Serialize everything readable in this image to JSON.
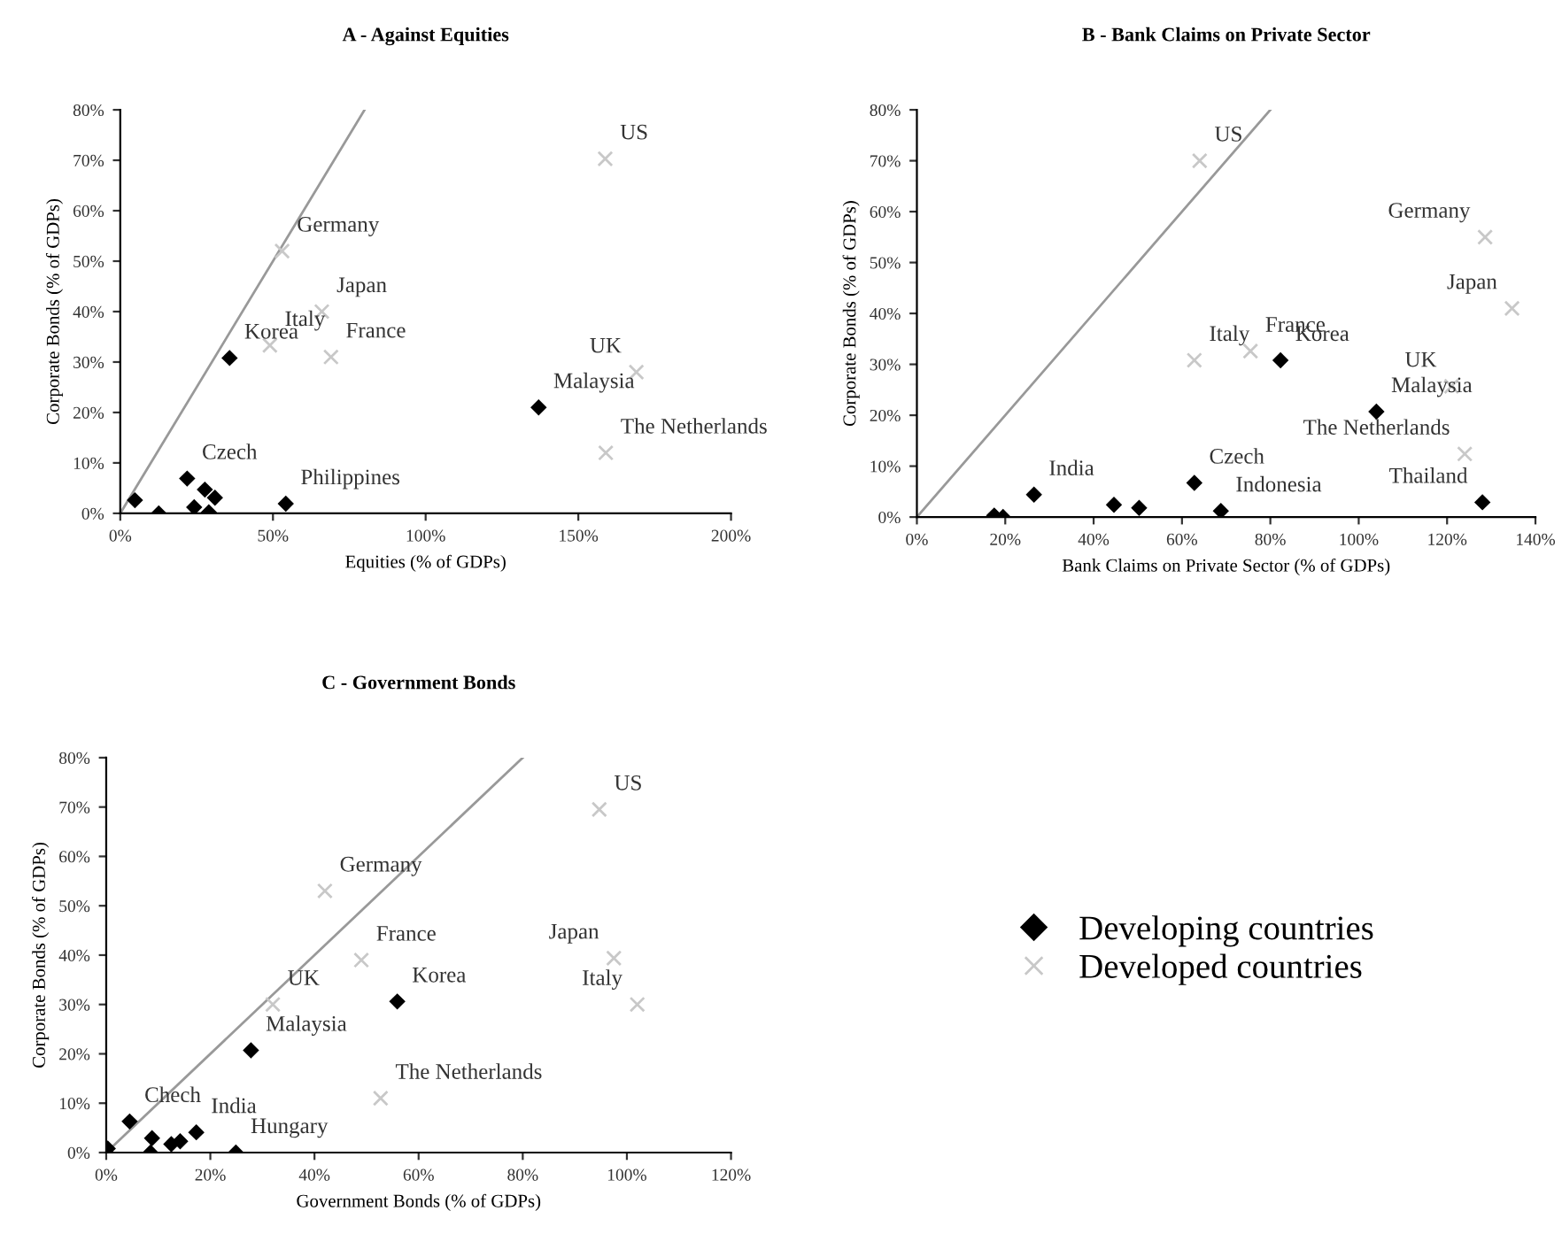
{
  "chart_data": [
    {
      "type": "scatter",
      "title": "A - Against Equities",
      "xlabel": "Equities (% of GDPs)",
      "ylabel": "Corporate Bonds (% of GDPs)",
      "xlim": [
        0,
        200
      ],
      "xticks": [
        {
          "value": 0,
          "label": "0%"
        },
        {
          "value": 50,
          "label": "50%"
        },
        {
          "value": 100,
          "label": "100%"
        },
        {
          "value": 150,
          "label": "150%"
        },
        {
          "value": 200,
          "label": "200%"
        }
      ],
      "ylim": [
        0,
        80
      ],
      "yticks": [
        {
          "value": 0,
          "label": "0%"
        },
        {
          "value": 10,
          "label": "10%"
        },
        {
          "value": 20,
          "label": "20%"
        },
        {
          "value": 30,
          "label": "30%"
        },
        {
          "value": 40,
          "label": "40%"
        },
        {
          "value": 50,
          "label": "50%"
        },
        {
          "value": 60,
          "label": "60%"
        },
        {
          "value": 70,
          "label": "70%"
        },
        {
          "value": 80,
          "label": "80%"
        }
      ],
      "grid": false,
      "series": [
        {
          "type": "scatter",
          "marker": "diamond",
          "color": "#000000",
          "x": [
            4.8,
            12.6,
            21.9,
            24.2,
            27.7,
            31,
            29,
            35.8,
            54.2,
            137
          ],
          "values": [
            2.6,
            0,
            6.9,
            1.2,
            4.7,
            3.1,
            0.2,
            30.8,
            1.9,
            21
          ]
        },
        {
          "type": "scatter",
          "marker": "cross",
          "color": "#c8c8c8",
          "x": [
            158.8,
            53,
            66,
            49,
            69,
            169,
            159
          ],
          "values": [
            70.3,
            52,
            40,
            33.3,
            31,
            28,
            12
          ]
        },
        {
          "type": "line",
          "marker": "none",
          "color": "#999999",
          "x": [
            0,
            80
          ],
          "values": [
            0,
            80
          ]
        }
      ],
      "annotations": [
        {
          "text": "Germany",
          "x": 53,
          "y": 52
        },
        {
          "text": "Japan",
          "x": 66,
          "y": 40
        },
        {
          "text": "Korea",
          "x": 35.8,
          "y": 30.8
        },
        {
          "text": "Italy",
          "x": 49,
          "y": 33.3
        },
        {
          "text": "France",
          "x": 69,
          "y": 31
        },
        {
          "text": "US",
          "x": 158.8,
          "y": 70.3
        },
        {
          "text": "UK",
          "x": 169,
          "y": 28
        },
        {
          "text": "Malaysia",
          "x": 137,
          "y": 21
        },
        {
          "text": "Czech",
          "x": 21.9,
          "y": 6.9
        },
        {
          "text": "The Netherlands",
          "x": 159,
          "y": 12
        },
        {
          "text": "Philippines",
          "x": 54.2,
          "y": 1.9
        }
      ]
    },
    {
      "type": "scatter",
      "title": "B - Bank Claims on Private Sector",
      "xlabel": "Bank Claims on Private Sector (% of GDPs)",
      "ylabel": "Corporate Bonds (% of GDPs)",
      "xlim": [
        0,
        140
      ],
      "xticks": [
        {
          "value": 0,
          "label": "0%"
        },
        {
          "value": 20,
          "label": "20%"
        },
        {
          "value": 40,
          "label": "40%"
        },
        {
          "value": 60,
          "label": "60%"
        },
        {
          "value": 80,
          "label": "80%"
        },
        {
          "value": 100,
          "label": "100%"
        },
        {
          "value": 120,
          "label": "120%"
        },
        {
          "value": 140,
          "label": "140%"
        }
      ],
      "ylim": [
        0,
        80
      ],
      "yticks": [
        {
          "value": 0,
          "label": "0%"
        },
        {
          "value": 10,
          "label": "10%"
        },
        {
          "value": 20,
          "label": "20%"
        },
        {
          "value": 30,
          "label": "30%"
        },
        {
          "value": 40,
          "label": "40%"
        },
        {
          "value": 50,
          "label": "50%"
        },
        {
          "value": 60,
          "label": "60%"
        },
        {
          "value": 70,
          "label": "70%"
        },
        {
          "value": 80,
          "label": "80%"
        }
      ],
      "grid": false,
      "series": [
        {
          "type": "scatter",
          "marker": "diamond",
          "color": "#000000",
          "x": [
            17.5,
            19.5,
            26.5,
            44.6,
            50.3,
            62.8,
            68.8,
            82.3,
            104,
            128
          ],
          "values": [
            0.3,
            0,
            4.4,
            2.4,
            1.8,
            6.7,
            1.2,
            30.8,
            20.7,
            2.9
          ]
        },
        {
          "type": "scatter",
          "marker": "cross",
          "color": "#c8c8c8",
          "x": [
            64,
            128.6,
            134.7,
            75.5,
            62.8,
            121,
            124
          ],
          "values": [
            70,
            55,
            41,
            32.6,
            30.8,
            25.7,
            12.4
          ]
        },
        {
          "type": "line",
          "marker": "none",
          "color": "#999999",
          "x": [
            0,
            80
          ],
          "values": [
            0,
            80
          ]
        }
      ],
      "annotations": [
        {
          "text": "US",
          "x": 64,
          "y": 70
        },
        {
          "text": "Germany",
          "x": 128.6,
          "y": 55
        },
        {
          "text": "Japan",
          "x": 134.7,
          "y": 41
        },
        {
          "text": "France",
          "x": 75.5,
          "y": 32.6
        },
        {
          "text": "Italy",
          "x": 62.8,
          "y": 30.8
        },
        {
          "text": "Korea",
          "x": 82.3,
          "y": 30.8
        },
        {
          "text": "UK",
          "x": 121,
          "y": 25.7
        },
        {
          "text": "Malaysia",
          "x": 104,
          "y": 20.7
        },
        {
          "text": "The Netherlands",
          "x": 124,
          "y": 12.4
        },
        {
          "text": "India",
          "x": 26.5,
          "y": 4.4
        },
        {
          "text": "Czech",
          "x": 62.8,
          "y": 6.7
        },
        {
          "text": "Indonesia",
          "x": 68.8,
          "y": 1.2
        },
        {
          "text": "Thailand",
          "x": 128,
          "y": 2.9
        }
      ]
    },
    {
      "type": "scatter",
      "title": "C - Government Bonds",
      "xlabel": "Government Bonds (% of GDPs)",
      "ylabel": "Corporate Bonds (% of GDPs)",
      "xlim": [
        0,
        120
      ],
      "xticks": [
        {
          "value": 0,
          "label": "0%"
        },
        {
          "value": 20,
          "label": "20%"
        },
        {
          "value": 40,
          "label": "40%"
        },
        {
          "value": 60,
          "label": "60%"
        },
        {
          "value": 80,
          "label": "80%"
        },
        {
          "value": 100,
          "label": "100%"
        },
        {
          "value": 120,
          "label": "120%"
        }
      ],
      "ylim": [
        0,
        80
      ],
      "yticks": [
        {
          "value": 0,
          "label": "0%"
        },
        {
          "value": 10,
          "label": "10%"
        },
        {
          "value": 20,
          "label": "20%"
        },
        {
          "value": 30,
          "label": "30%"
        },
        {
          "value": 40,
          "label": "40%"
        },
        {
          "value": 50,
          "label": "50%"
        },
        {
          "value": 60,
          "label": "60%"
        },
        {
          "value": 70,
          "label": "70%"
        },
        {
          "value": 80,
          "label": "80%"
        }
      ],
      "grid": false,
      "legend": "right",
      "series": [
        {
          "name": "Developing countries",
          "type": "scatter",
          "marker": "diamond",
          "color": "#000000",
          "x": [
            0.3,
            4.5,
            8.8,
            8.5,
            12.5,
            14.2,
            17.3,
            24.9,
            27.8,
            55.9
          ],
          "values": [
            0.8,
            6.3,
            2.9,
            0,
            1.7,
            2.3,
            4.1,
            0,
            20.7,
            30.6
          ]
        },
        {
          "name": "Developed countries",
          "type": "scatter",
          "marker": "cross",
          "color": "#c8c8c8",
          "x": [
            94.7,
            42,
            97.5,
            102,
            49,
            32,
            52.7
          ],
          "values": [
            69.5,
            53,
            39.4,
            30,
            39,
            30,
            11
          ]
        },
        {
          "type": "line",
          "marker": "none",
          "color": "#999999",
          "x": [
            0,
            80
          ],
          "values": [
            0,
            80
          ]
        }
      ],
      "annotations": [
        {
          "text": "Germany",
          "x": 42,
          "y": 53
        },
        {
          "text": "US",
          "x": 94.7,
          "y": 69.5
        },
        {
          "text": "France",
          "x": 49,
          "y": 39
        },
        {
          "text": "Japan",
          "x": 97.5,
          "y": 39.4
        },
        {
          "text": "UK",
          "x": 32,
          "y": 30
        },
        {
          "text": "Korea",
          "x": 55.9,
          "y": 30.6
        },
        {
          "text": "Italy",
          "x": 102,
          "y": 30
        },
        {
          "text": "Malaysia",
          "x": 27.8,
          "y": 20.7
        },
        {
          "text": "The Netherlands",
          "x": 52.7,
          "y": 11
        },
        {
          "text": "Chech",
          "x": 4.5,
          "y": 6.3
        },
        {
          "text": "India",
          "x": 17.3,
          "y": 4.1
        },
        {
          "text": "Hungary",
          "x": 24.9,
          "y": 0
        }
      ]
    }
  ]
}
